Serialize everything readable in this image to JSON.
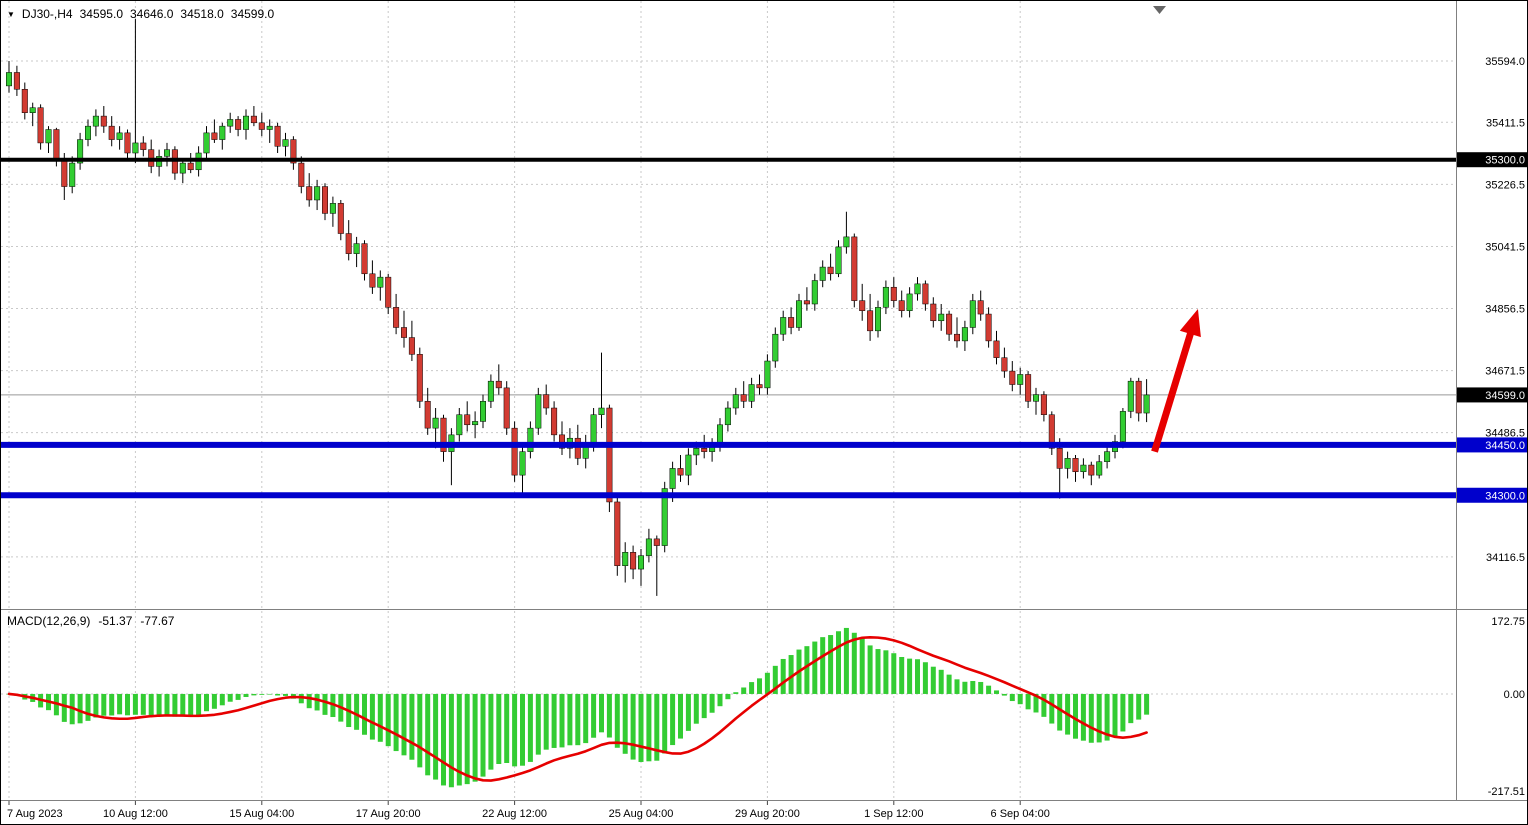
{
  "header": {
    "dropdown_icon": "▼",
    "symbol": "DJ30-,H4",
    "open": "34595.0",
    "high": "34646.0",
    "low": "34518.0",
    "close": "34599.0"
  },
  "macd_label": {
    "name": "MACD(12,26,9)",
    "value_1": "-51.37",
    "value_2": "-77.67"
  },
  "price_axis": {
    "grid": [
      {
        "value": 35594.0,
        "label": "35594.0"
      },
      {
        "value": 35411.5,
        "label": "35411.5"
      },
      {
        "value": 35226.5,
        "label": "35226.5"
      },
      {
        "value": 35041.5,
        "label": "35041.5"
      },
      {
        "value": 34856.5,
        "label": "34856.5"
      },
      {
        "value": 34671.5,
        "label": "34671.5"
      },
      {
        "value": 34486.5,
        "label": "34486.5"
      },
      {
        "value": 34301.5,
        "label": ""
      },
      {
        "value": 34116.5,
        "label": "34116.5"
      }
    ]
  },
  "levels": [
    {
      "value": 35300.0,
      "label": "35300.0",
      "color": "#000000",
      "thickness": 4
    },
    {
      "value": 34450.0,
      "label": "34450.0",
      "color": "#0000CC",
      "thickness": 6
    },
    {
      "value": 34300.0,
      "label": "34300.0",
      "color": "#0000CC",
      "thickness": 6
    }
  ],
  "current_price": {
    "value": 34599.0,
    "label": "34599.0",
    "line_color": "#999999",
    "tag_color": "#000000"
  },
  "date_axis": [
    {
      "index": 0,
      "label": "7 Aug 2023"
    },
    {
      "index": 16,
      "label": "10 Aug 12:00"
    },
    {
      "index": 32,
      "label": "15 Aug 04:00"
    },
    {
      "index": 48,
      "label": "17 Aug 20:00"
    },
    {
      "index": 64,
      "label": "22 Aug 12:00"
    },
    {
      "index": 80,
      "label": "25 Aug 04:00"
    },
    {
      "index": 96,
      "label": "29 Aug 20:00"
    },
    {
      "index": 112,
      "label": "1 Sep 12:00"
    },
    {
      "index": 128,
      "label": "6 Sep 04:00"
    }
  ],
  "annotation_arrow": {
    "from_index": 145,
    "from_price": 34430,
    "to_index": 150.5,
    "to_price": 34855,
    "color": "#E60000"
  },
  "colors": {
    "background": "#FFFFFF",
    "bull": "#32CD32",
    "bear": "#D23B32",
    "wick": "#000000",
    "histogram": "#33CC33",
    "signal_line": "#E60000",
    "grid": "#C9C9C9",
    "axis_text": "#000000",
    "panel_border": "#808080",
    "arrow": "#E60000"
  },
  "chart_data": [
    {
      "type": "candlestick",
      "symbol": "DJ30-",
      "timeframe": "H4",
      "y_range": {
        "min": 33961,
        "max": 35773
      },
      "candles": [
        [
          35520,
          35594,
          35500,
          35560
        ],
        [
          35560,
          35580,
          35490,
          35510
        ],
        [
          35510,
          35530,
          35420,
          35440
        ],
        [
          35440,
          35470,
          35400,
          35455
        ],
        [
          35455,
          35465,
          35330,
          35350
        ],
        [
          35350,
          35400,
          35320,
          35390
        ],
        [
          35390,
          35395,
          35280,
          35300
        ],
        [
          35300,
          35320,
          35180,
          35220
        ],
        [
          35220,
          35310,
          35200,
          35290
        ],
        [
          35290,
          35380,
          35270,
          35360
        ],
        [
          35360,
          35420,
          35340,
          35400
        ],
        [
          35400,
          35450,
          35370,
          35430
        ],
        [
          35430,
          35460,
          35380,
          35400
        ],
        [
          35400,
          35430,
          35340,
          35360
        ],
        [
          35360,
          35400,
          35330,
          35380
        ],
        [
          35380,
          35390,
          35300,
          35320
        ],
        [
          35320,
          35720,
          35290,
          35350
        ],
        [
          35350,
          35370,
          35310,
          35330
        ],
        [
          35330,
          35360,
          35260,
          35280
        ],
        [
          35280,
          35330,
          35250,
          35310
        ],
        [
          35310,
          35350,
          35280,
          35330
        ],
        [
          35330,
          35340,
          35240,
          35260
        ],
        [
          35260,
          35300,
          35230,
          35290
        ],
        [
          35290,
          35320,
          35260,
          35270
        ],
        [
          35270,
          35340,
          35250,
          35320
        ],
        [
          35320,
          35400,
          35300,
          35380
        ],
        [
          35380,
          35420,
          35350,
          35360
        ],
        [
          35360,
          35410,
          35330,
          35400
        ],
        [
          35400,
          35440,
          35380,
          35420
        ],
        [
          35420,
          35430,
          35370,
          35390
        ],
        [
          35390,
          35450,
          35360,
          35430
        ],
        [
          35430,
          35460,
          35400,
          35410
        ],
        [
          35410,
          35440,
          35370,
          35390
        ],
        [
          35390,
          35420,
          35350,
          35400
        ],
        [
          35400,
          35410,
          35320,
          35340
        ],
        [
          35340,
          35380,
          35310,
          35360
        ],
        [
          35360,
          35370,
          35270,
          35290
        ],
        [
          35290,
          35310,
          35200,
          35220
        ],
        [
          35220,
          35260,
          35160,
          35180
        ],
        [
          35180,
          35240,
          35150,
          35220
        ],
        [
          35220,
          35230,
          35120,
          35140
        ],
        [
          35140,
          35190,
          35100,
          35170
        ],
        [
          35170,
          35180,
          35060,
          35080
        ],
        [
          35080,
          35120,
          35000,
          35020
        ],
        [
          35020,
          35070,
          34980,
          35050
        ],
        [
          35050,
          35060,
          34940,
          34960
        ],
        [
          34960,
          35000,
          34900,
          34920
        ],
        [
          34920,
          34970,
          34880,
          34950
        ],
        [
          34950,
          34960,
          34840,
          34860
        ],
        [
          34860,
          34900,
          34780,
          34800
        ],
        [
          34800,
          34850,
          34740,
          34770
        ],
        [
          34770,
          34820,
          34700,
          34720
        ],
        [
          34720,
          34740,
          34560,
          34580
        ],
        [
          34580,
          34620,
          34480,
          34500
        ],
        [
          34500,
          34560,
          34440,
          34530
        ],
        [
          34530,
          34540,
          34400,
          34430
        ],
        [
          34430,
          34500,
          34330,
          34480
        ],
        [
          34480,
          34560,
          34460,
          34540
        ],
        [
          34540,
          34580,
          34490,
          34510
        ],
        [
          34510,
          34550,
          34470,
          34520
        ],
        [
          34520,
          34600,
          34500,
          34580
        ],
        [
          34580,
          34660,
          34560,
          34640
        ],
        [
          34640,
          34690,
          34600,
          34620
        ],
        [
          34620,
          34640,
          34480,
          34500
        ],
        [
          34500,
          34520,
          34340,
          34360
        ],
        [
          34360,
          34450,
          34300,
          34430
        ],
        [
          34430,
          34520,
          34410,
          34500
        ],
        [
          34500,
          34620,
          34480,
          34600
        ],
        [
          34600,
          34630,
          34540,
          34560
        ],
        [
          34560,
          34580,
          34460,
          34480
        ],
        [
          34480,
          34520,
          34420,
          34440
        ],
        [
          34440,
          34500,
          34410,
          34470
        ],
        [
          34470,
          34510,
          34390,
          34410
        ],
        [
          34410,
          34480,
          34380,
          34450
        ],
        [
          34450,
          34560,
          34430,
          34540
        ],
        [
          34540,
          34725,
          34500,
          34560
        ],
        [
          34560,
          34570,
          34250,
          34280
        ],
        [
          34280,
          34300,
          34060,
          34090
        ],
        [
          34090,
          34160,
          34040,
          34130
        ],
        [
          34130,
          34150,
          34050,
          34080
        ],
        [
          34080,
          34140,
          34030,
          34120
        ],
        [
          34120,
          34200,
          34100,
          34170
        ],
        [
          34170,
          34180,
          34000,
          34150
        ],
        [
          34150,
          34340,
          34130,
          34320
        ],
        [
          34320,
          34400,
          34280,
          34380
        ],
        [
          34380,
          34420,
          34340,
          34360
        ],
        [
          34360,
          34440,
          34330,
          34420
        ],
        [
          34420,
          34460,
          34390,
          34440
        ],
        [
          34440,
          34480,
          34410,
          34430
        ],
        [
          34430,
          34470,
          34400,
          34450
        ],
        [
          34450,
          34530,
          34430,
          34510
        ],
        [
          34510,
          34580,
          34490,
          34560
        ],
        [
          34560,
          34620,
          34540,
          34600
        ],
        [
          34600,
          34640,
          34560,
          34580
        ],
        [
          34580,
          34650,
          34560,
          34630
        ],
        [
          34630,
          34660,
          34600,
          34620
        ],
        [
          34620,
          34720,
          34600,
          34700
        ],
        [
          34700,
          34800,
          34680,
          34780
        ],
        [
          34780,
          34850,
          34760,
          34830
        ],
        [
          34830,
          34860,
          34780,
          34800
        ],
        [
          34800,
          34900,
          34790,
          34880
        ],
        [
          34880,
          34920,
          34850,
          34870
        ],
        [
          34870,
          34960,
          34850,
          34940
        ],
        [
          34940,
          35000,
          34920,
          34980
        ],
        [
          34980,
          35020,
          34940,
          34960
        ],
        [
          34960,
          35060,
          34950,
          35040
        ],
        [
          35040,
          35145,
          35020,
          35070
        ],
        [
          35070,
          35080,
          34860,
          34880
        ],
        [
          34880,
          34930,
          34820,
          34850
        ],
        [
          34850,
          34900,
          34760,
          34790
        ],
        [
          34790,
          34880,
          34770,
          34860
        ],
        [
          34860,
          34940,
          34840,
          34920
        ],
        [
          34920,
          34950,
          34860,
          34880
        ],
        [
          34880,
          34910,
          34830,
          34850
        ],
        [
          34850,
          34920,
          34830,
          34900
        ],
        [
          34900,
          34950,
          34880,
          34930
        ],
        [
          34930,
          34940,
          34850,
          34870
        ],
        [
          34870,
          34890,
          34800,
          34820
        ],
        [
          34820,
          34870,
          34790,
          34840
        ],
        [
          34840,
          34850,
          34760,
          34780
        ],
        [
          34780,
          34830,
          34740,
          34760
        ],
        [
          34760,
          34820,
          34730,
          34800
        ],
        [
          34800,
          34900,
          34780,
          34880
        ],
        [
          34880,
          34910,
          34820,
          34840
        ],
        [
          34840,
          34860,
          34740,
          34760
        ],
        [
          34760,
          34790,
          34690,
          34710
        ],
        [
          34710,
          34740,
          34650,
          34670
        ],
        [
          34670,
          34700,
          34610,
          34630
        ],
        [
          34630,
          34680,
          34600,
          34660
        ],
        [
          34660,
          34670,
          34560,
          34580
        ],
        [
          34580,
          34620,
          34540,
          34600
        ],
        [
          34600,
          34610,
          34520,
          34540
        ],
        [
          34540,
          34550,
          34420,
          34440
        ],
        [
          34440,
          34470,
          34290,
          34380
        ],
        [
          34380,
          34430,
          34350,
          34410
        ],
        [
          34410,
          34420,
          34340,
          34370
        ],
        [
          34370,
          34410,
          34350,
          34390
        ],
        [
          34390,
          34400,
          34330,
          34360
        ],
        [
          34360,
          34420,
          34350,
          34400
        ],
        [
          34400,
          34450,
          34380,
          34430
        ],
        [
          34430,
          34480,
          34410,
          34460
        ],
        [
          34460,
          34560,
          34440,
          34550
        ],
        [
          34550,
          34650,
          34530,
          34640
        ],
        [
          34640,
          34650,
          34520,
          34545
        ],
        [
          34545,
          34646,
          34518,
          34599
        ]
      ]
    },
    {
      "type": "bar",
      "name": "MACD(12,26,9)",
      "parameters": {
        "fast_ema": 12,
        "slow_ema": 26,
        "signal_sma": 9
      },
      "current_values": {
        "macd": -51.37,
        "signal": -77.67
      },
      "derived_from_closes": true,
      "y_axis_labels": {
        "top": "172.75",
        "zero": "0.00",
        "bottom": "-217.51"
      }
    }
  ]
}
